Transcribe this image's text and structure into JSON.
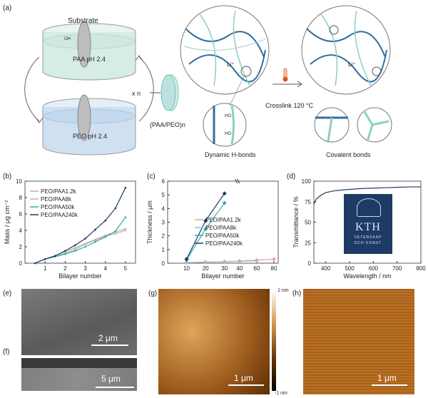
{
  "panels": {
    "a": "(a)",
    "b": "(b)",
    "c": "(c)",
    "d": "(d)",
    "e": "(e)",
    "f": "(f)",
    "g": "(g)",
    "h": "(h)"
  },
  "schematic": {
    "substrate": "Substrate",
    "paa_solution": "PAA pH 2.4",
    "peo_solution": "PEO pH 2.4",
    "repeat": "x n",
    "film": "(PAA/PEO)n",
    "li_ion": "Li⁺",
    "crosslink": "Crosslink 120 °C",
    "dynamic": "Dynamic H-bonds",
    "covalent": "Covalent bonds",
    "oh": "OH",
    "ho": "HO"
  },
  "chart_data": [
    {
      "type": "line",
      "panel": "b",
      "ylabel": "Mass / μg cm⁻²",
      "xlabel": "Bilayer number",
      "x": [
        0.5,
        1,
        1.5,
        2,
        2.5,
        3,
        3.5,
        4,
        4.5,
        5
      ],
      "xlim": [
        0,
        5.5
      ],
      "ylim": [
        0,
        10
      ],
      "xticks": [
        "1",
        "2",
        "3",
        "4",
        "5"
      ],
      "yticks": [
        "0",
        "2",
        "4",
        "6",
        "8",
        "10"
      ],
      "series": [
        {
          "name": "PEO/PAA1.2k",
          "color": "#e0a98c",
          "values": [
            0,
            0.5,
            0.9,
            1.4,
            1.9,
            2.4,
            2.9,
            3.4,
            3.8,
            4.2
          ]
        },
        {
          "name": "PEO/PAA8k",
          "color": "#a9b9c8",
          "values": [
            0,
            0.5,
            0.8,
            1.2,
            1.7,
            2.3,
            2.8,
            3.3,
            3.6,
            4.0
          ]
        },
        {
          "name": "PEO/PAA50k",
          "color": "#2bb0a8",
          "values": [
            0,
            0.5,
            0.8,
            1.1,
            1.5,
            2.0,
            2.6,
            3.2,
            3.9,
            5.6
          ]
        },
        {
          "name": "PEO/PAA240k",
          "color": "#1e3a66",
          "values": [
            0,
            0.5,
            0.9,
            1.5,
            2.2,
            3.0,
            4.1,
            5.2,
            6.7,
            9.2
          ]
        }
      ]
    },
    {
      "type": "line",
      "panel": "c",
      "ylabel": "Thickness / μm",
      "xlabel": "Bilayer number",
      "xlim": [
        0,
        85
      ],
      "ylim": [
        0,
        6
      ],
      "xticks": [
        "10",
        "20",
        "30",
        "40",
        "60",
        "80"
      ],
      "yticks": [
        "0",
        "1",
        "2",
        "3",
        "4",
        "5",
        "6"
      ],
      "series": [
        {
          "name": "PEO/PAA1.2k",
          "color": "#e0a98c",
          "x": [
            10,
            20,
            30,
            40,
            60,
            80
          ],
          "values": [
            0.05,
            0.08,
            0.12,
            0.16,
            0.22,
            0.3
          ]
        },
        {
          "name": "PEO/PAA8k",
          "color": "#a9b9c8",
          "x": [
            10,
            20,
            30,
            40,
            60
          ],
          "values": [
            0.04,
            0.07,
            0.1,
            0.13,
            0.18
          ]
        },
        {
          "name": "PEO/PAA50k",
          "color": "#2bb0a8",
          "x": [
            10,
            20,
            30
          ],
          "values": [
            0.25,
            2.5,
            4.4
          ]
        },
        {
          "name": "PEO/PAA240k",
          "color": "#1e3a66",
          "x": [
            10,
            20,
            30
          ],
          "values": [
            0.3,
            3.1,
            5.1
          ]
        }
      ]
    },
    {
      "type": "line",
      "panel": "d",
      "ylabel": "Transmittance / %",
      "xlabel": "Wavelength / nm",
      "xlim": [
        350,
        800
      ],
      "ylim": [
        0,
        100
      ],
      "xticks": [
        "400",
        "500",
        "600",
        "700",
        "800"
      ],
      "yticks": [
        "0",
        "25",
        "50",
        "75",
        "100"
      ],
      "series": [
        {
          "name": "",
          "color": "#1e3a66",
          "x": [
            350,
            360,
            380,
            400,
            430,
            460,
            500,
            550,
            600,
            650,
            700,
            750,
            800
          ],
          "values": [
            72,
            78,
            83,
            86,
            88,
            89,
            90,
            91,
            91.5,
            92,
            92.5,
            93,
            93
          ]
        }
      ]
    }
  ],
  "logo": {
    "name": "KTH",
    "line1": "VETENSKAP",
    "line2": "OCH KONST"
  },
  "images": {
    "e_scale": "2 μm",
    "f_scale": "5 μm",
    "g_scale": "1 μm",
    "h_scale": "1 μm",
    "g_colorbar_top": "1 nm",
    "g_colorbar_bottom": "-1 nm"
  },
  "colors": {
    "dark": "#1e3a66",
    "teal": "#2bb0a8",
    "peach": "#e0a98c",
    "grey": "#a9b9c8"
  }
}
